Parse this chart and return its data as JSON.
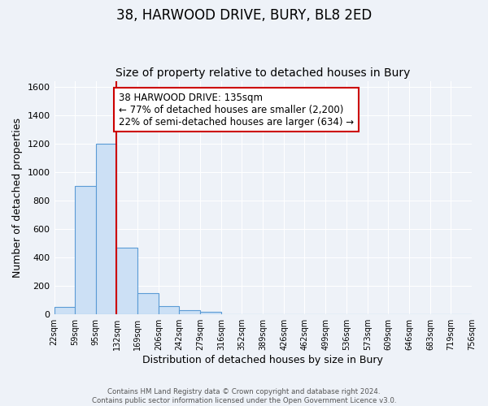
{
  "title": "38, HARWOOD DRIVE, BURY, BL8 2ED",
  "subtitle": "Size of property relative to detached houses in Bury",
  "xlabel": "Distribution of detached houses by size in Bury",
  "ylabel": "Number of detached properties",
  "bar_heights": [
    55,
    900,
    1200,
    470,
    150,
    60,
    30,
    20,
    0,
    0,
    0,
    0,
    0,
    0,
    0,
    0,
    0,
    0,
    0,
    0
  ],
  "bin_edges": [
    22,
    59,
    95,
    132,
    169,
    206,
    242,
    279,
    316,
    352,
    389,
    426,
    462,
    499,
    536,
    573,
    609,
    646,
    683,
    719,
    756
  ],
  "bar_color": "#cce0f5",
  "bar_edge_color": "#5b9bd5",
  "vline_x": 132,
  "vline_color": "#cc0000",
  "ylim": [
    0,
    1640
  ],
  "annotation_text": "38 HARWOOD DRIVE: 135sqm\n← 77% of detached houses are smaller (2,200)\n22% of semi-detached houses are larger (634) →",
  "annotation_box_edge": "#cc0000",
  "annotation_box_face": "#ffffff",
  "tick_labels": [
    "22sqm",
    "59sqm",
    "95sqm",
    "132sqm",
    "169sqm",
    "206sqm",
    "242sqm",
    "279sqm",
    "316sqm",
    "352sqm",
    "389sqm",
    "426sqm",
    "462sqm",
    "499sqm",
    "536sqm",
    "573sqm",
    "609sqm",
    "646sqm",
    "683sqm",
    "719sqm",
    "756sqm"
  ],
  "footer_text": "Contains HM Land Registry data © Crown copyright and database right 2024.\nContains public sector information licensed under the Open Government Licence v3.0.",
  "bg_color": "#eef2f8",
  "grid_color": "#ffffff",
  "title_fontsize": 12,
  "subtitle_fontsize": 10,
  "axis_label_fontsize": 9,
  "tick_fontsize": 7,
  "annotation_fontsize": 8.5,
  "yticks": [
    0,
    200,
    400,
    600,
    800,
    1000,
    1200,
    1400,
    1600
  ]
}
